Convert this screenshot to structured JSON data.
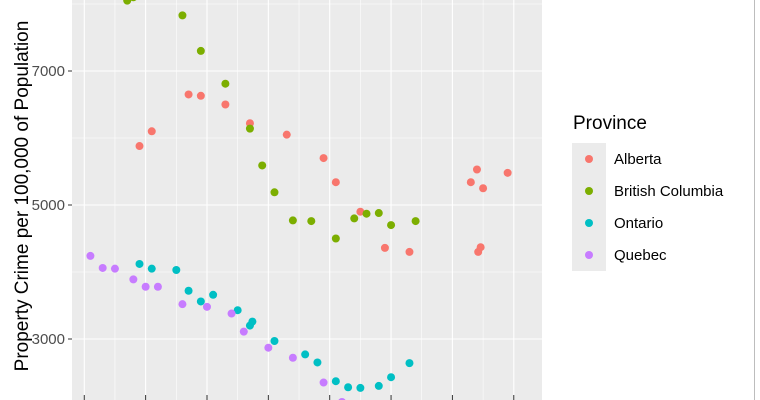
{
  "chart_data": {
    "type": "scatter",
    "ylabel": "Property Crime per 100,000 of Population",
    "xlabel": "",
    "ylim": [
      1800,
      8100
    ],
    "xlim": [
      1981.5,
      2019.8
    ],
    "yticks": [
      3000,
      5000,
      7000
    ],
    "grid": true,
    "legend": {
      "title": "Province",
      "position": "right"
    },
    "series": [
      {
        "name": "Alberta",
        "color": "#F8766D",
        "points": [
          [
            1987,
            5880
          ],
          [
            1988,
            6100
          ],
          [
            1991,
            6650
          ],
          [
            1992,
            6630
          ],
          [
            1994,
            6500
          ],
          [
            1996,
            6220
          ],
          [
            1999,
            6050
          ],
          [
            2002,
            5700
          ],
          [
            2003,
            5340
          ],
          [
            2005,
            4900
          ],
          [
            2007,
            4360
          ],
          [
            2009,
            4300
          ],
          [
            2014,
            5340
          ],
          [
            2014.5,
            5530
          ],
          [
            2015,
            5250
          ],
          [
            2014.6,
            4300
          ],
          [
            2014.8,
            4370
          ],
          [
            2017,
            5480
          ]
        ]
      },
      {
        "name": "British Columbia",
        "color": "#7CAE00",
        "points": [
          [
            1986,
            8050
          ],
          [
            1986.5,
            8100
          ],
          [
            1990.5,
            7830
          ],
          [
            1992,
            7300
          ],
          [
            1994,
            6810
          ],
          [
            1996,
            6140
          ],
          [
            1997,
            5590
          ],
          [
            1998,
            5190
          ],
          [
            1999.5,
            4770
          ],
          [
            2001,
            4760
          ],
          [
            2003,
            4500
          ],
          [
            2004.5,
            4800
          ],
          [
            2005.5,
            4870
          ],
          [
            2006.5,
            4880
          ],
          [
            2007.5,
            4700
          ],
          [
            2009.5,
            4760
          ]
        ]
      },
      {
        "name": "Ontario",
        "color": "#00BFC4",
        "points": [
          [
            1987,
            4120
          ],
          [
            1988,
            4050
          ],
          [
            1990,
            4030
          ],
          [
            1991,
            3720
          ],
          [
            1992,
            3560
          ],
          [
            1993,
            3660
          ],
          [
            1995,
            3430
          ],
          [
            1996,
            3200
          ],
          [
            1996.2,
            3260
          ],
          [
            1998,
            2970
          ],
          [
            2000.5,
            2770
          ],
          [
            2001.5,
            2650
          ],
          [
            2003,
            2370
          ],
          [
            2004,
            2280
          ],
          [
            2005,
            2270
          ],
          [
            2006.5,
            2300
          ],
          [
            2007.5,
            2430
          ],
          [
            2009,
            2640
          ]
        ]
      },
      {
        "name": "Quebec",
        "color": "#C77CFF",
        "points": [
          [
            1983,
            4240
          ],
          [
            1984,
            4060
          ],
          [
            1985,
            4050
          ],
          [
            1986.5,
            3890
          ],
          [
            1987.5,
            3780
          ],
          [
            1988.5,
            3780
          ],
          [
            1990.5,
            3520
          ],
          [
            1992.5,
            3480
          ],
          [
            1994.5,
            3380
          ],
          [
            1995.5,
            3110
          ],
          [
            1997.5,
            2870
          ],
          [
            1999.5,
            2720
          ],
          [
            2002,
            2350
          ],
          [
            2003.5,
            2060
          ]
        ]
      }
    ]
  }
}
